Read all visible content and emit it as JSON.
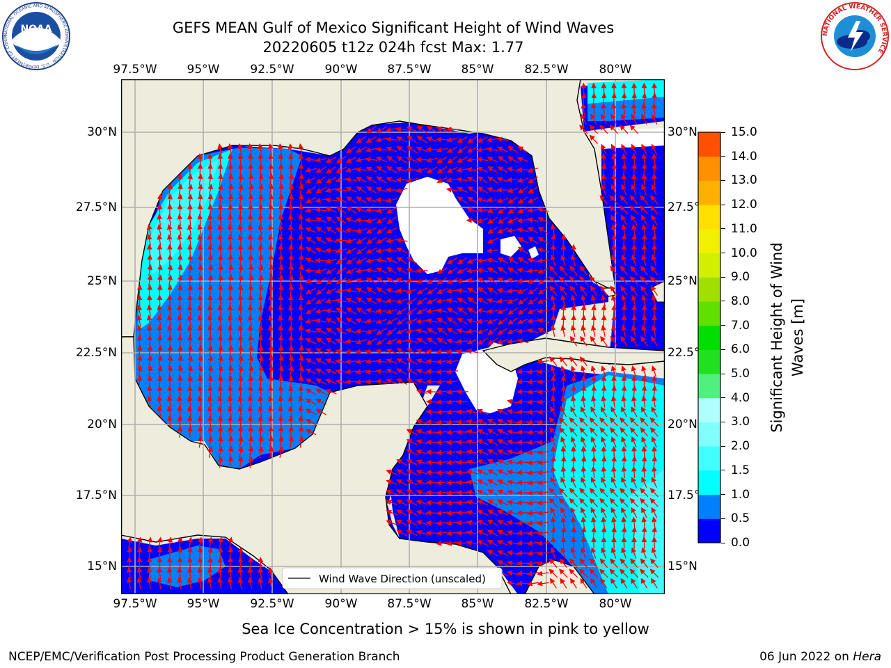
{
  "title": {
    "line1": "GEFS MEAN Gulf of Mexico Significant Height of Wind Waves",
    "line2": "20220605 t12z 024h fcst   Max: 1.77"
  },
  "logos": {
    "noaa": {
      "text": "NOAA",
      "ring_text": "NATIONAL OCEANIC AND ATMOSPHERIC ADMINISTRATION · U.S. DEPARTMENT OF COMMERCE"
    },
    "nws": {
      "ring_text": "NATIONAL WEATHER SERVICE"
    }
  },
  "map": {
    "lon_labels": [
      "97.5°W",
      "95°W",
      "92.5°W",
      "90°W",
      "87.5°W",
      "85°W",
      "82.5°W",
      "80°W"
    ],
    "lat_labels": [
      "30°N",
      "27.5°N",
      "25°N",
      "22.5°N",
      "20°N",
      "17.5°N",
      "15°N"
    ],
    "legend_label": "Wind Wave Direction (unscaled)",
    "colors": {
      "land": "#eeecdc",
      "no_data": "#ffffff",
      "grid": "#b0b0b0",
      "arrow": "#ff0000"
    }
  },
  "colorbar": {
    "label": "Significant Height of Wind Waves [m]",
    "label_line1": "Significant Height of Wind",
    "label_line2": "Waves [m]",
    "ticks": [
      "0.0",
      "0.5",
      "1.0",
      "1.5",
      "2.0",
      "3.0",
      "4.0",
      "5.0",
      "6.0",
      "7.0",
      "8.0",
      "9.0",
      "10.0",
      "11.0",
      "12.0",
      "13.0",
      "14.0",
      "15.0"
    ],
    "colors": [
      "#0000ff",
      "#0080ff",
      "#00ffff",
      "#40ffff",
      "#80ffff",
      "#b0ffff",
      "#50f080",
      "#20e020",
      "#00e000",
      "#60e000",
      "#a0e000",
      "#d0f000",
      "#f0f000",
      "#ffe000",
      "#ffb000",
      "#ff9000",
      "#ff5000",
      "#ff2000"
    ]
  },
  "caption": "Sea Ice Concentration > 15% is shown in pink to yellow",
  "footer": {
    "left": "NCEP/EMC/Verification Post Processing Product Generation Branch",
    "date": "06 Jun 2022 on",
    "host": "Hera"
  }
}
